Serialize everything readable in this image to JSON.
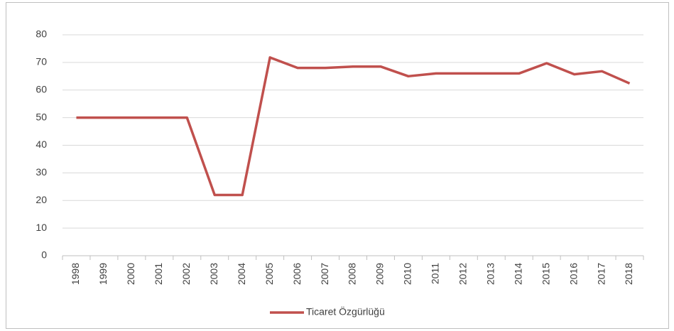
{
  "chart_data": {
    "type": "line",
    "categories": [
      "1998",
      "1999",
      "2000",
      "2001",
      "2002",
      "2003",
      "2004",
      "2005",
      "2006",
      "2007",
      "2008",
      "2009",
      "2010",
      "2011",
      "2012",
      "2013",
      "2014",
      "2015",
      "2016",
      "2017",
      "2018"
    ],
    "series": [
      {
        "name": "Ticaret Özgürlüğü",
        "color": "#c0504d",
        "values": [
          50,
          50,
          50,
          50,
          50,
          22,
          22,
          71.8,
          68,
          68,
          68.5,
          68.5,
          65,
          66,
          66,
          66,
          66,
          69.7,
          65.7,
          66.8,
          62.4
        ]
      }
    ],
    "ylim": [
      0,
      80
    ],
    "yticks": [
      0,
      10,
      20,
      30,
      40,
      50,
      60,
      70,
      80
    ],
    "grid": true,
    "legend": "bottom"
  }
}
